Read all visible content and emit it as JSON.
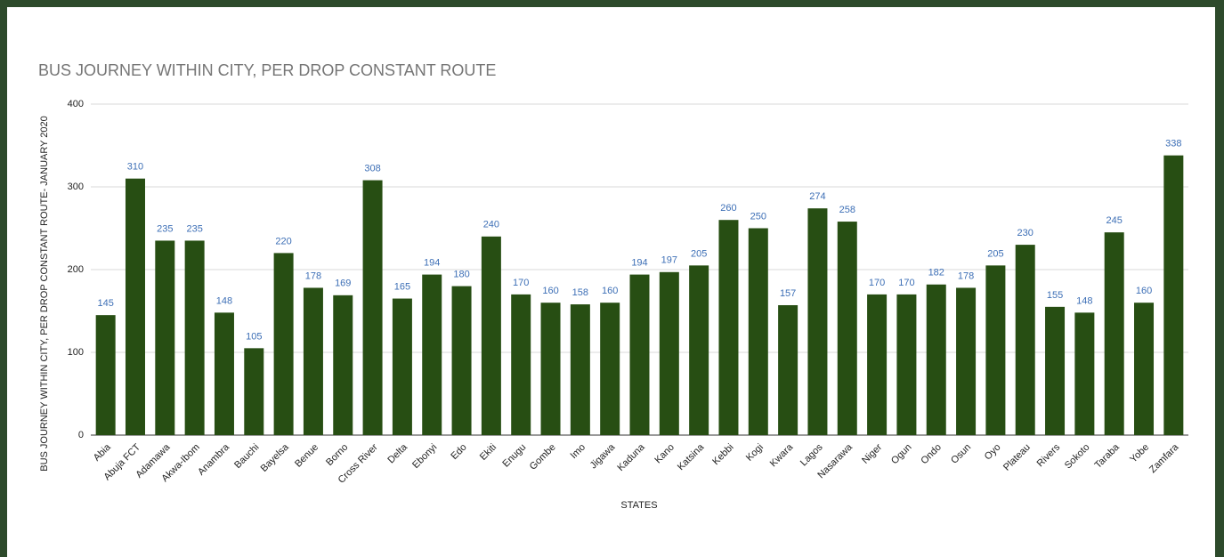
{
  "chart_data": {
    "type": "bar",
    "title": "BUS JOURNEY WITHIN CITY, PER DROP CONSTANT ROUTE",
    "x_label": "STATES",
    "y_label": "BUS JOURNEY WITHIN CITY, PER DROP CONSTANT ROUTE- JANUARY 2020",
    "categories": [
      "Abia",
      "Abuja FCT",
      "Adamawa",
      "Akwa-Ibom",
      "Anambra",
      "Bauchi",
      "Bayelsa",
      "Benue",
      "Borno",
      "Cross River",
      "Delta",
      "Ebonyi",
      "Edo",
      "Ekiti",
      "Enugu",
      "Gombe",
      "Imo",
      "Jigawa",
      "Kaduna",
      "Kano",
      "Katsina",
      "Kebbi",
      "Kogi",
      "Kwara",
      "Lagos",
      "Nasarawa",
      "Niger",
      "Ogun",
      "Ondo",
      "Osun",
      "Oyo",
      "Plateau",
      "Rivers",
      "Sokoto",
      "Taraba",
      "Yobe",
      "Zamfara"
    ],
    "values": [
      145,
      310,
      235,
      235,
      148,
      105,
      220,
      178,
      169,
      308,
      165,
      194,
      180,
      240,
      170,
      160,
      158,
      160,
      194,
      197,
      205,
      260,
      250,
      157,
      274,
      258,
      170,
      170,
      182,
      178,
      205,
      230,
      155,
      148,
      245,
      160,
      338
    ],
    "color": "#274e13",
    "ylim": [
      0,
      400
    ],
    "yticks": [
      0,
      100,
      200,
      300,
      400
    ],
    "grid": true
  }
}
